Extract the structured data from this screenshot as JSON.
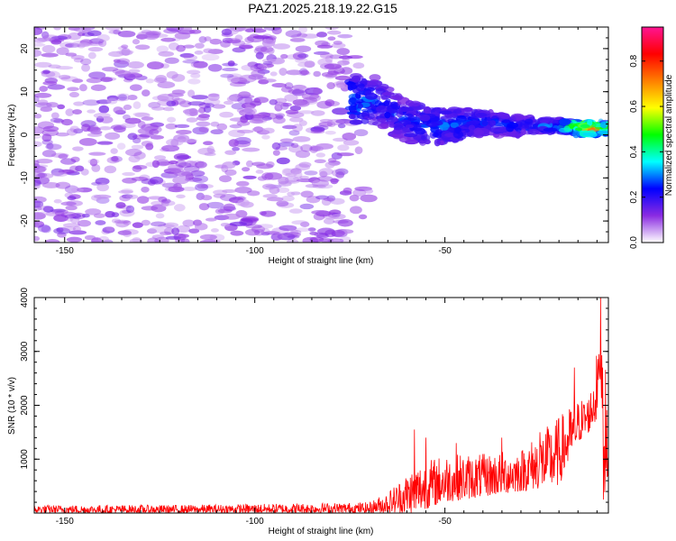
{
  "title": "PAZ1.2025.218.19.22.G15",
  "chart_data": [
    {
      "type": "heatmap",
      "xlabel": "Height of straight line (km)",
      "ylabel": "Frequency (Hz)",
      "xlim": [
        -158,
        -7
      ],
      "ylim": [
        -25,
        25
      ],
      "xticks": [
        -150,
        -100,
        -50
      ],
      "yticks": [
        -20,
        -10,
        0,
        10,
        20
      ],
      "colorbar": {
        "label": "Normalized spectral amplitude",
        "range": [
          0,
          0.95
        ],
        "ticks": [
          "0.0",
          "0.2",
          "0.4",
          "0.6",
          "0.8"
        ],
        "colormap": [
          "#ffffff",
          "#8a2be2",
          "#0000ff",
          "#00ffff",
          "#00ff00",
          "#ffff00",
          "#ff7f00",
          "#ff0000",
          "#ff1493"
        ]
      },
      "ridge": [
        {
          "x": -75,
          "y": 8,
          "amp": 0.3
        },
        {
          "x": -68,
          "y": 8,
          "amp": 0.2
        },
        {
          "x": -60,
          "y": 3,
          "amp": 0.2
        },
        {
          "x": -50,
          "y": 2,
          "amp": 0.25
        },
        {
          "x": -40,
          "y": 3,
          "amp": 0.2
        },
        {
          "x": -30,
          "y": 2,
          "amp": 0.2
        },
        {
          "x": -20,
          "y": 2,
          "amp": 0.3
        },
        {
          "x": -15,
          "y": 1.5,
          "amp": 0.6
        },
        {
          "x": -12,
          "y": 1.5,
          "amp": 0.85
        },
        {
          "x": -8,
          "y": 1.5,
          "amp": 0.5
        }
      ],
      "noise_region": {
        "x": [
          -158,
          -76
        ],
        "y": [
          -25,
          25
        ],
        "amp": 0.15
      }
    },
    {
      "type": "line",
      "xlabel": "Height of straight line (km)",
      "ylabel": "SNR (10 * v/v)",
      "xlim": [
        -158,
        -7
      ],
      "ylim": [
        0,
        4000
      ],
      "xticks": [
        -150,
        -100,
        -50
      ],
      "yticks": [
        1000,
        2000,
        3000,
        4000
      ],
      "color": "#ff0000",
      "envelope": [
        {
          "x": -158,
          "lo": 0,
          "hi": 150
        },
        {
          "x": -120,
          "lo": 0,
          "hi": 150
        },
        {
          "x": -70,
          "lo": 0,
          "hi": 200
        },
        {
          "x": -65,
          "lo": 0,
          "hi": 400
        },
        {
          "x": -58,
          "lo": 0,
          "hi": 900
        },
        {
          "x": -50,
          "lo": 200,
          "hi": 1100
        },
        {
          "x": -40,
          "lo": 300,
          "hi": 1100
        },
        {
          "x": -30,
          "lo": 400,
          "hi": 1200
        },
        {
          "x": -20,
          "lo": 500,
          "hi": 1800
        },
        {
          "x": -15,
          "lo": 1300,
          "hi": 2100
        },
        {
          "x": -12,
          "lo": 1500,
          "hi": 2200
        },
        {
          "x": -10,
          "lo": 1700,
          "hi": 3000
        },
        {
          "x": -9,
          "lo": 2500,
          "hi": 4000
        },
        {
          "x": -8,
          "lo": 300,
          "hi": 3200
        },
        {
          "x": -7,
          "lo": 800,
          "hi": 1000
        }
      ],
      "spikes": [
        {
          "x": -58,
          "y": 1550
        },
        {
          "x": -55,
          "y": 1400
        },
        {
          "x": -47,
          "y": 1300
        },
        {
          "x": -35,
          "y": 1400
        },
        {
          "x": -25,
          "y": 1500
        },
        {
          "x": -16,
          "y": 2700
        },
        {
          "x": -9.5,
          "y": 2950
        },
        {
          "x": -9,
          "y": 4000
        },
        {
          "x": -8.3,
          "y": 250
        }
      ]
    }
  ]
}
